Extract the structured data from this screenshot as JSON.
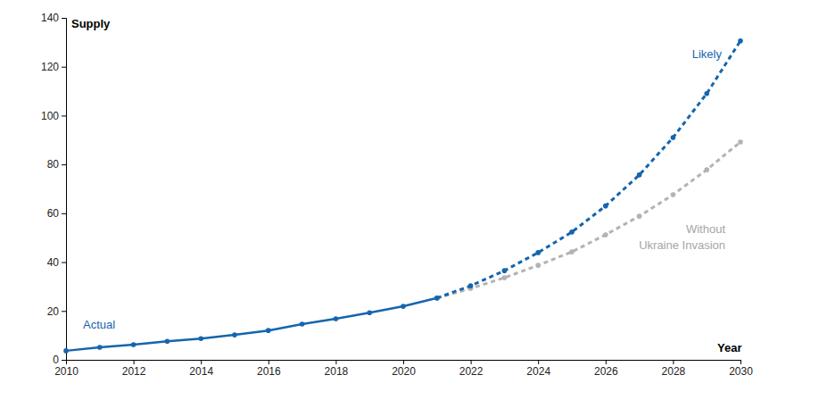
{
  "chart_data": {
    "type": "line",
    "x_label": "Year",
    "y_label": "Supply",
    "x": [
      2010,
      2011,
      2012,
      2013,
      2014,
      2015,
      2016,
      2017,
      2018,
      2019,
      2020,
      2021,
      2022,
      2023,
      2024,
      2025,
      2026,
      2027,
      2028,
      2029,
      2030
    ],
    "series": [
      {
        "name": "Actual",
        "color": "#1565ae",
        "line_style": "solid",
        "marker": "circle",
        "values": [
          3.7,
          5.1,
          6.2,
          7.6,
          8.7,
          10.2,
          12.0,
          14.6,
          16.8,
          19.3,
          21.9,
          25.3,
          null,
          null,
          null,
          null,
          null,
          null,
          null,
          null,
          null
        ]
      },
      {
        "name": "Without Ukraine Invasion",
        "color": "#b3b3b3",
        "line_style": "dashed",
        "marker": "circle",
        "values": [
          null,
          null,
          null,
          null,
          null,
          null,
          null,
          null,
          null,
          null,
          null,
          25.3,
          29.2,
          33.6,
          38.7,
          44.2,
          51.2,
          58.8,
          67.6,
          77.8,
          89.2
        ]
      },
      {
        "name": "Likely",
        "color": "#1565ae",
        "line_style": "dashed",
        "marker": "circle",
        "values": [
          null,
          null,
          null,
          null,
          null,
          null,
          null,
          null,
          null,
          null,
          null,
          25.3,
          30.3,
          36.5,
          43.9,
          52.3,
          63.0,
          75.7,
          91.0,
          109.0,
          130.6
        ]
      }
    ],
    "xlim": [
      2010,
      2030
    ],
    "xticks": [
      2010,
      2012,
      2014,
      2016,
      2018,
      2020,
      2022,
      2024,
      2026,
      2028,
      2030
    ],
    "ylim": [
      0,
      140
    ],
    "yticks": [
      0,
      20,
      40,
      60,
      80,
      100,
      120,
      140
    ],
    "grid": false
  }
}
